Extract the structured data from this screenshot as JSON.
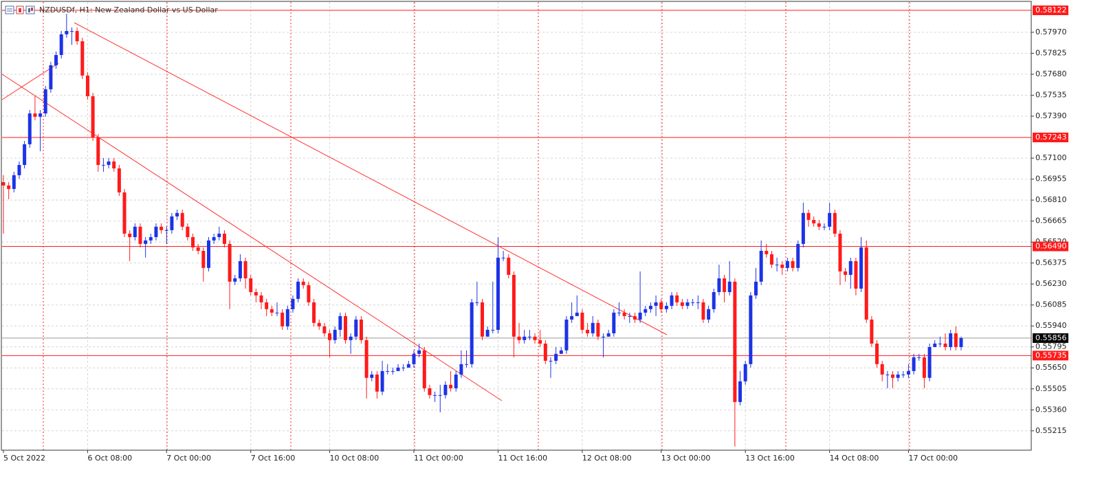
{
  "chart_data": {
    "type": "candlestick",
    "title": "NZDUSDf, H1:  New Zealand Dollar vs US Dollar",
    "up_color": "#1c33e6",
    "down_color": "#ff1a1a",
    "grid": true,
    "ylim": [
      0.55081,
      0.58179
    ],
    "yticks": [
      0.55215,
      {
        "value": 0.5536,
        "label": "0.55360"
      },
      0.55505,
      {
        "value": 0.5565,
        "label": "0.55650"
      },
      {
        "value": 0.55795,
        "label": "0.55795"
      },
      {
        "value": 0.5594,
        "label": "0.55940"
      },
      0.56085,
      {
        "value": 0.5623,
        "label": "0.56230"
      },
      0.56375,
      {
        "value": 0.5652,
        "label": "0.56520"
      },
      0.56665,
      {
        "value": 0.5681,
        "label": "0.56810"
      },
      0.56955,
      {
        "value": 0.571,
        "label": "0.57100"
      },
      {
        "value": 0.5739,
        "label": "0.57390"
      },
      0.57535,
      {
        "value": 0.5768,
        "label": "0.57680"
      },
      0.57825,
      {
        "value": 0.5797,
        "label": "0.57970"
      }
    ],
    "levels": [
      {
        "value": 0.58122,
        "color": "#ff1a1a"
      },
      {
        "value": 0.57243,
        "color": "#ff1a1a"
      },
      {
        "value": 0.5649,
        "label": "0.56490",
        "color": "#ff1a1a"
      },
      {
        "value": 0.55735,
        "color": "#ff1a1a"
      }
    ],
    "current_price": {
      "value": 0.55856,
      "color": "#9a9a9a"
    },
    "categories": [
      "5 Oct 2022",
      null,
      null,
      null,
      null,
      null,
      null,
      null,
      null,
      null,
      null,
      null,
      null,
      null,
      null,
      null,
      "6 Oct 08:00",
      null,
      null,
      null,
      null,
      null,
      null,
      null,
      null,
      null,
      null,
      null,
      null,
      null,
      null,
      "7 Oct 00:00",
      null,
      null,
      null,
      null,
      null,
      null,
      null,
      null,
      null,
      null,
      null,
      null,
      null,
      null,
      null,
      "7 Oct 16:00",
      null,
      null,
      null,
      null,
      null,
      null,
      null,
      null,
      null,
      null,
      null,
      null,
      null,
      null,
      "10 Oct 08:00",
      null,
      null,
      null,
      null,
      null,
      null,
      null,
      null,
      null,
      null,
      null,
      null,
      null,
      null,
      null,
      "11 Oct 00:00",
      null,
      null,
      null,
      null,
      null,
      null,
      null,
      null,
      null,
      null,
      null,
      null,
      null,
      null,
      null,
      "11 Oct 16:00",
      null,
      null,
      null,
      null,
      null,
      null,
      null,
      null,
      null,
      null,
      null,
      null,
      null,
      null,
      null,
      "12 Oct 08:00",
      null,
      null,
      null,
      null,
      null,
      null,
      null,
      null,
      null,
      null,
      null,
      null,
      null,
      null,
      "13 Oct 00:00",
      null,
      null,
      null,
      null,
      null,
      null,
      null,
      null,
      null,
      null,
      null,
      null,
      null,
      null,
      null,
      "13 Oct 16:00",
      null,
      null,
      null,
      null,
      null,
      null,
      null,
      null,
      null,
      null,
      null,
      null,
      null,
      null,
      null,
      "14 Oct 08:00",
      null,
      null,
      null,
      null,
      null,
      null,
      null,
      null,
      null,
      null,
      null,
      null,
      null,
      null,
      "17 Oct 00:00",
      null,
      null,
      null,
      null,
      null,
      null,
      null,
      null,
      null,
      null
    ],
    "candles": [
      [
        0.56934,
        0.56982,
        0.56578,
        0.56911
      ],
      [
        0.56911,
        0.56934,
        0.56816,
        0.56887
      ],
      [
        0.56887,
        0.57006,
        0.56863,
        0.56982
      ],
      [
        0.56982,
        0.57077,
        0.56958,
        0.57053
      ],
      [
        0.57053,
        0.57219,
        0.57029,
        0.57196
      ],
      [
        0.57196,
        0.57433,
        0.57172,
        0.57409
      ],
      [
        0.57409,
        0.57528,
        0.57362,
        0.57386
      ],
      [
        0.57386,
        0.57433,
        0.57148,
        0.57409
      ],
      [
        0.57409,
        0.57599,
        0.57386,
        0.57576
      ],
      [
        0.57576,
        0.57766,
        0.57552,
        0.57742
      ],
      [
        0.57742,
        0.57837,
        0.57718,
        0.57813
      ],
      [
        0.57813,
        0.57979,
        0.57789,
        0.57956
      ],
      [
        0.57956,
        0.58098,
        0.57932,
        0.57979
      ],
      [
        0.57979,
        0.58003,
        0.57884,
        0.57979
      ],
      [
        0.57979,
        0.58003,
        0.57884,
        0.57908
      ],
      [
        0.57908,
        0.57932,
        0.57647,
        0.57671
      ],
      [
        0.57671,
        0.57694,
        0.57504,
        0.57528
      ],
      [
        0.57528,
        0.57552,
        0.57219,
        0.57243
      ],
      [
        0.57243,
        0.57267,
        0.57006,
        0.57053
      ],
      [
        0.57053,
        0.57101,
        0.57006,
        0.57053
      ],
      [
        0.57053,
        0.57101,
        0.57029,
        0.57077
      ],
      [
        0.57077,
        0.57101,
        0.57006,
        0.57029
      ],
      [
        0.57029,
        0.57053,
        0.56839,
        0.56863
      ],
      [
        0.56863,
        0.56887,
        0.56554,
        0.56578
      ],
      [
        0.56578,
        0.56602,
        0.56388,
        0.56554
      ],
      [
        0.56554,
        0.56649,
        0.56531,
        0.56626
      ],
      [
        0.56626,
        0.56649,
        0.56483,
        0.56507
      ],
      [
        0.56507,
        0.56554,
        0.56412,
        0.56531
      ],
      [
        0.56531,
        0.56578,
        0.56507,
        0.56554
      ],
      [
        0.56554,
        0.56649,
        0.56531,
        0.56626
      ],
      [
        0.56626,
        0.56649,
        0.56578,
        0.56602
      ],
      [
        0.56602,
        0.56626,
        0.56507,
        0.56602
      ],
      [
        0.56602,
        0.56721,
        0.56578,
        0.56697
      ],
      [
        0.56697,
        0.56744,
        0.56673,
        0.56721
      ],
      [
        0.56721,
        0.56744,
        0.56602,
        0.56626
      ],
      [
        0.56626,
        0.56649,
        0.56531,
        0.56554
      ],
      [
        0.56554,
        0.56578,
        0.56459,
        0.56483
      ],
      [
        0.56483,
        0.56507,
        0.56436,
        0.56459
      ],
      [
        0.56459,
        0.56483,
        0.56246,
        0.56341
      ],
      [
        0.56341,
        0.56554,
        0.56317,
        0.56531
      ],
      [
        0.56531,
        0.56578,
        0.56507,
        0.56554
      ],
      [
        0.56554,
        0.56626,
        0.56531,
        0.56578
      ],
      [
        0.56578,
        0.56602,
        0.56483,
        0.56507
      ],
      [
        0.56507,
        0.56531,
        0.56056,
        0.56246
      ],
      [
        0.56246,
        0.56293,
        0.56222,
        0.56269
      ],
      [
        0.56269,
        0.56436,
        0.56246,
        0.56388
      ],
      [
        0.56388,
        0.56412,
        0.56198,
        0.56269
      ],
      [
        0.56269,
        0.56293,
        0.56151,
        0.56174
      ],
      [
        0.56174,
        0.56198,
        0.56103,
        0.56151
      ],
      [
        0.56151,
        0.56174,
        0.56056,
        0.56103
      ],
      [
        0.56103,
        0.56127,
        0.56008,
        0.56056
      ],
      [
        0.56056,
        0.56079,
        0.56008,
        0.56032
      ],
      [
        0.56032,
        0.56103,
        0.56008,
        0.56032
      ],
      [
        0.56032,
        0.56056,
        0.55913,
        0.55937
      ],
      [
        0.55937,
        0.56079,
        0.55913,
        0.56056
      ],
      [
        0.56056,
        0.56151,
        0.56032,
        0.56127
      ],
      [
        0.56127,
        0.56269,
        0.56103,
        0.56246
      ],
      [
        0.56246,
        0.56269,
        0.56198,
        0.56222
      ],
      [
        0.56222,
        0.56246,
        0.56079,
        0.56103
      ],
      [
        0.56103,
        0.56127,
        0.55937,
        0.55961
      ],
      [
        0.55961,
        0.55984,
        0.55913,
        0.55937
      ],
      [
        0.55937,
        0.55961,
        0.55866,
        0.55889
      ],
      [
        0.55889,
        0.55913,
        0.55723,
        0.55842
      ],
      [
        0.55842,
        0.55937,
        0.55818,
        0.55913
      ],
      [
        0.55913,
        0.56032,
        0.55866,
        0.56008
      ],
      [
        0.56008,
        0.56032,
        0.55818,
        0.55842
      ],
      [
        0.55842,
        0.55889,
        0.55747,
        0.55866
      ],
      [
        0.55866,
        0.56008,
        0.55842,
        0.55984
      ],
      [
        0.55984,
        0.56008,
        0.55818,
        0.55842
      ],
      [
        0.55842,
        0.55866,
        0.55438,
        0.55581
      ],
      [
        0.55581,
        0.55628,
        0.55557,
        0.55604
      ],
      [
        0.55604,
        0.55628,
        0.55438,
        0.55486
      ],
      [
        0.55486,
        0.55699,
        0.55462,
        0.55628
      ],
      [
        0.55628,
        0.55676,
        0.55604,
        0.55628
      ],
      [
        0.55628,
        0.55652,
        0.55604,
        0.55628
      ],
      [
        0.55628,
        0.55676,
        0.55628,
        0.55652
      ],
      [
        0.55652,
        0.55676,
        0.55628,
        0.55652
      ],
      [
        0.55652,
        0.55699,
        0.55652,
        0.55676
      ],
      [
        0.55676,
        0.55771,
        0.55652,
        0.55747
      ],
      [
        0.55747,
        0.55818,
        0.55723,
        0.55771
      ],
      [
        0.55771,
        0.55794,
        0.55486,
        0.55509
      ],
      [
        0.55509,
        0.55533,
        0.55438,
        0.55462
      ],
      [
        0.55462,
        0.55486,
        0.55414,
        0.55462
      ],
      [
        0.55462,
        0.55533,
        0.55343,
        0.55462
      ],
      [
        0.55462,
        0.55557,
        0.55438,
        0.55533
      ],
      [
        0.55533,
        0.55628,
        0.55486,
        0.55509
      ],
      [
        0.55509,
        0.55628,
        0.55486,
        0.55604
      ],
      [
        0.55604,
        0.55771,
        0.55581,
        0.55676
      ],
      [
        0.55676,
        0.55771,
        0.55652,
        0.55676
      ],
      [
        0.55676,
        0.56127,
        0.55652,
        0.56103
      ],
      [
        0.56103,
        0.56246,
        0.56079,
        0.56103
      ],
      [
        0.56103,
        0.56127,
        0.55842,
        0.55866
      ],
      [
        0.55866,
        0.55937,
        0.55866,
        0.55913
      ],
      [
        0.55913,
        0.56246,
        0.55889,
        0.55913
      ],
      [
        0.55913,
        0.56554,
        0.55889,
        0.56412
      ],
      [
        0.56412,
        0.56459,
        0.56388,
        0.56412
      ],
      [
        0.56412,
        0.56436,
        0.56269,
        0.56293
      ],
      [
        0.56293,
        0.56317,
        0.55723,
        0.55866
      ],
      [
        0.55866,
        0.55961,
        0.55818,
        0.55842
      ],
      [
        0.55842,
        0.55913,
        0.55818,
        0.55866
      ],
      [
        0.55866,
        0.55913,
        0.55842,
        0.55866
      ],
      [
        0.55866,
        0.55889,
        0.55818,
        0.55842
      ],
      [
        0.55842,
        0.55913,
        0.55794,
        0.55818
      ],
      [
        0.55818,
        0.55842,
        0.55676,
        0.55699
      ],
      [
        0.55699,
        0.55723,
        0.55581,
        0.55699
      ],
      [
        0.55699,
        0.55794,
        0.55676,
        0.55747
      ],
      [
        0.55747,
        0.55794,
        0.55747,
        0.55771
      ],
      [
        0.55771,
        0.56008,
        0.55747,
        0.55984
      ],
      [
        0.55984,
        0.56103,
        0.55961,
        0.56008
      ],
      [
        0.56008,
        0.56151,
        0.56008,
        0.56032
      ],
      [
        0.56032,
        0.56056,
        0.55889,
        0.55913
      ],
      [
        0.55913,
        0.55961,
        0.55866,
        0.55889
      ],
      [
        0.55889,
        0.56008,
        0.55866,
        0.55961
      ],
      [
        0.55961,
        0.55984,
        0.55842,
        0.55866
      ],
      [
        0.55866,
        0.55889,
        0.55723,
        0.55866
      ],
      [
        0.55866,
        0.55913,
        0.55866,
        0.55889
      ],
      [
        0.55889,
        0.56056,
        0.55866,
        0.56032
      ],
      [
        0.56032,
        0.56103,
        0.56008,
        0.56032
      ],
      [
        0.56032,
        0.56056,
        0.55984,
        0.56008
      ],
      [
        0.56008,
        0.56032,
        0.55961,
        0.56008
      ],
      [
        0.56008,
        0.56032,
        0.55961,
        0.55984
      ],
      [
        0.55984,
        0.56317,
        0.55961,
        0.56032
      ],
      [
        0.56032,
        0.56079,
        0.56008,
        0.56056
      ],
      [
        0.56056,
        0.56103,
        0.56032,
        0.56079
      ],
      [
        0.56079,
        0.56151,
        0.56008,
        0.56103
      ],
      [
        0.56103,
        0.56127,
        0.56032,
        0.56056
      ],
      [
        0.56056,
        0.56103,
        0.56032,
        0.56079
      ],
      [
        0.56079,
        0.56174,
        0.56056,
        0.56151
      ],
      [
        0.56151,
        0.56174,
        0.56079,
        0.56103
      ],
      [
        0.56103,
        0.56127,
        0.56056,
        0.56079
      ],
      [
        0.56079,
        0.56127,
        0.56056,
        0.56103
      ],
      [
        0.56103,
        0.56127,
        0.56079,
        0.56103
      ],
      [
        0.56103,
        0.56151,
        0.56056,
        0.56103
      ],
      [
        0.56103,
        0.56127,
        0.55961,
        0.55984
      ],
      [
        0.55984,
        0.56079,
        0.55961,
        0.56056
      ],
      [
        0.56056,
        0.56198,
        0.56032,
        0.56174
      ],
      [
        0.56174,
        0.56364,
        0.56151,
        0.56269
      ],
      [
        0.56269,
        0.56293,
        0.56103,
        0.56174
      ],
      [
        0.56174,
        0.56388,
        0.56151,
        0.56246
      ],
      [
        0.56246,
        0.56269,
        0.55106,
        0.55414
      ],
      [
        0.55414,
        0.55628,
        0.55391,
        0.55557
      ],
      [
        0.55557,
        0.55699,
        0.55533,
        0.55676
      ],
      [
        0.55676,
        0.56174,
        0.55652,
        0.56151
      ],
      [
        0.56151,
        0.56341,
        0.56127,
        0.56246
      ],
      [
        0.56246,
        0.56531,
        0.56222,
        0.56459
      ],
      [
        0.56459,
        0.56507,
        0.56412,
        0.56436
      ],
      [
        0.56436,
        0.56459,
        0.56341,
        0.56364
      ],
      [
        0.56364,
        0.56412,
        0.56317,
        0.56364
      ],
      [
        0.56364,
        0.56388,
        0.56293,
        0.56341
      ],
      [
        0.56341,
        0.56412,
        0.56317,
        0.56388
      ],
      [
        0.56388,
        0.56412,
        0.56317,
        0.56341
      ],
      [
        0.56341,
        0.56531,
        0.56317,
        0.56507
      ],
      [
        0.56507,
        0.56792,
        0.56483,
        0.56721
      ],
      [
        0.56721,
        0.56744,
        0.56626,
        0.56673
      ],
      [
        0.56673,
        0.56697,
        0.56626,
        0.56649
      ],
      [
        0.56649,
        0.56673,
        0.56602,
        0.56626
      ],
      [
        0.56626,
        0.56649,
        0.56602,
        0.56626
      ],
      [
        0.56626,
        0.56792,
        0.56602,
        0.56721
      ],
      [
        0.56721,
        0.56744,
        0.56554,
        0.56578
      ],
      [
        0.56578,
        0.56602,
        0.56222,
        0.56317
      ],
      [
        0.56317,
        0.56341,
        0.56246,
        0.56293
      ],
      [
        0.56293,
        0.56412,
        0.56198,
        0.56388
      ],
      [
        0.56388,
        0.56412,
        0.56151,
        0.56198
      ],
      [
        0.56198,
        0.56554,
        0.56174,
        0.56483
      ],
      [
        0.56483,
        0.56531,
        0.55961,
        0.55984
      ],
      [
        0.55984,
        0.56008,
        0.55794,
        0.55818
      ],
      [
        0.55818,
        0.55842,
        0.55652,
        0.55676
      ],
      [
        0.55676,
        0.55699,
        0.55557,
        0.55604
      ],
      [
        0.55604,
        0.55628,
        0.55509,
        0.55604
      ],
      [
        0.55604,
        0.55628,
        0.55509,
        0.55581
      ],
      [
        0.55581,
        0.55628,
        0.55557,
        0.55604
      ],
      [
        0.55604,
        0.55628,
        0.55581,
        0.55604
      ],
      [
        0.55604,
        0.55676,
        0.55581,
        0.55628
      ],
      [
        0.55628,
        0.55747,
        0.55604,
        0.55723
      ],
      [
        0.55723,
        0.55747,
        0.55699,
        0.55723
      ],
      [
        0.55723,
        0.55747,
        0.55509,
        0.55581
      ],
      [
        0.55581,
        0.55818,
        0.55557,
        0.55794
      ],
      [
        0.55794,
        0.55842,
        0.55794,
        0.55818
      ],
      [
        0.55818,
        0.55866,
        0.55794,
        0.55818
      ],
      [
        0.55818,
        0.55889,
        0.55771,
        0.55794
      ],
      [
        0.55794,
        0.55913,
        0.55771,
        0.55889
      ],
      [
        0.55889,
        0.55937,
        0.55771,
        0.55794
      ],
      [
        0.55794,
        0.55866,
        0.55771,
        0.55856
      ]
    ]
  }
}
